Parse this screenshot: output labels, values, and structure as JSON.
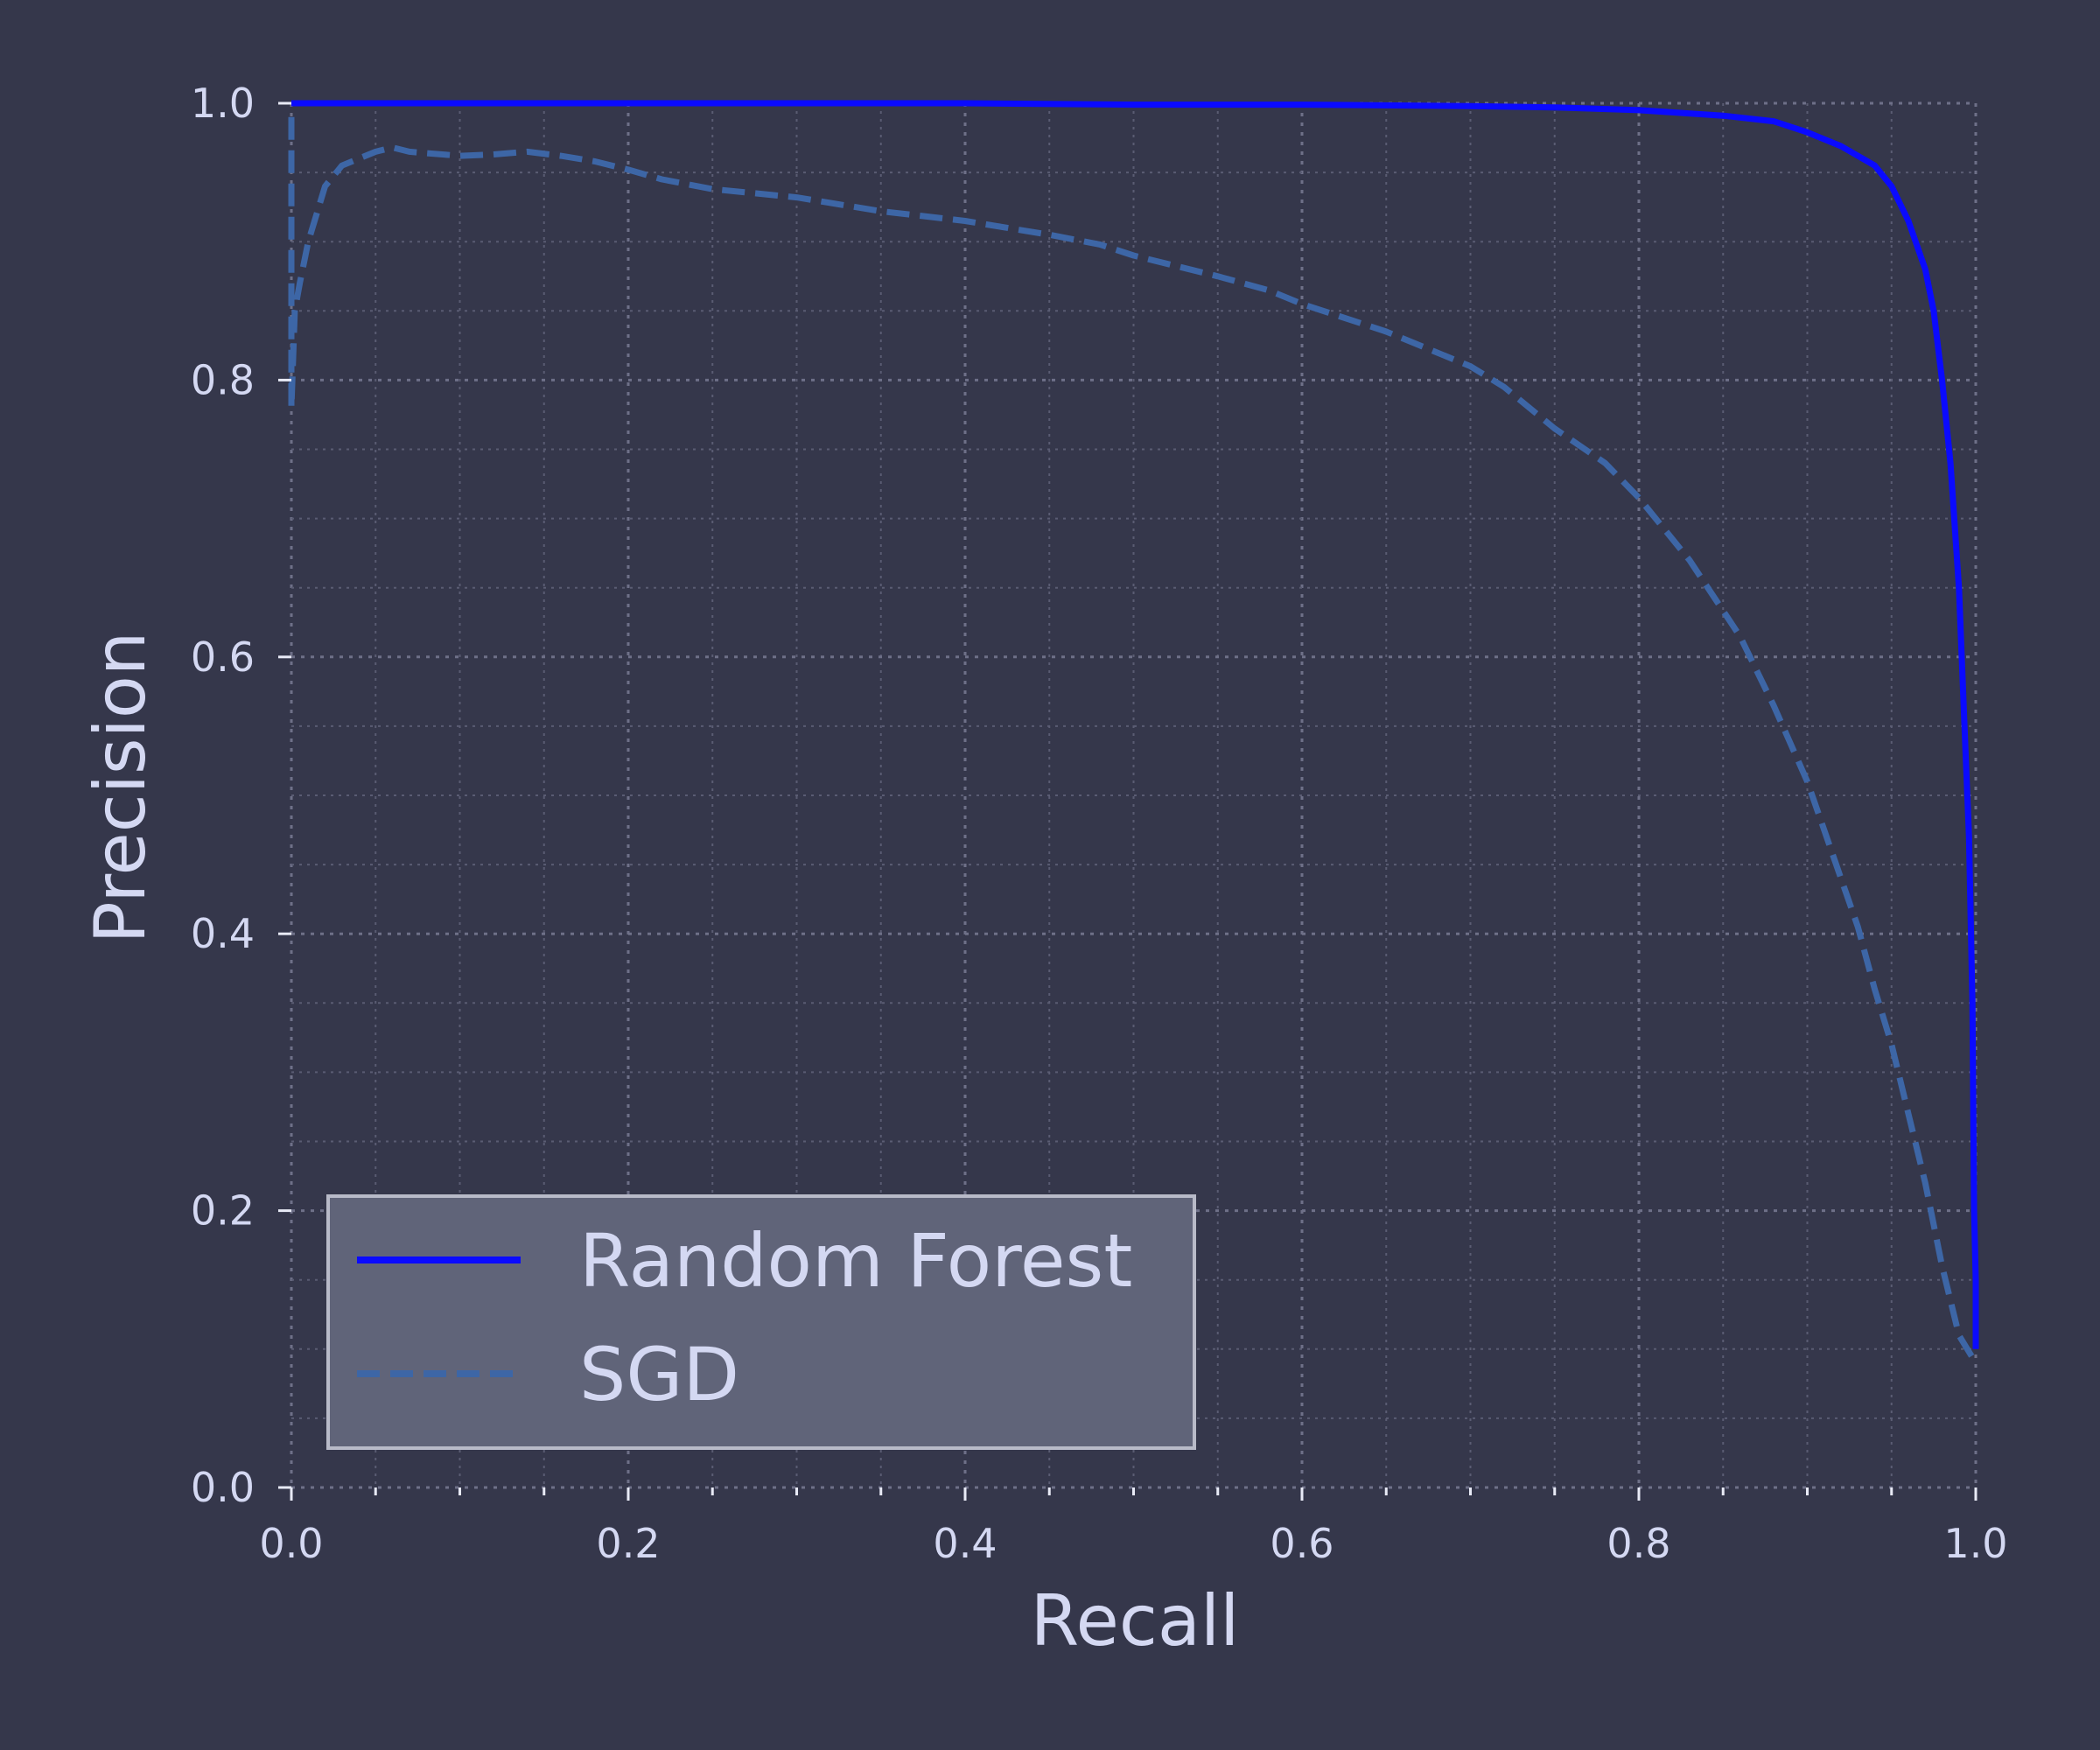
{
  "chart_data": {
    "type": "line",
    "xlabel": "Recall",
    "ylabel": "Precision",
    "xlim": [
      0.0,
      1.0
    ],
    "ylim": [
      0.0,
      1.0
    ],
    "x_ticks": [
      0.0,
      0.2,
      0.4,
      0.6,
      0.8,
      1.0
    ],
    "y_ticks": [
      0.0,
      0.2,
      0.4,
      0.6,
      0.8,
      1.0
    ],
    "x_tick_labels": [
      "0.0",
      "0.2",
      "0.4",
      "0.6",
      "0.8",
      "1.0"
    ],
    "y_tick_labels": [
      "0.0",
      "0.2",
      "0.4",
      "0.6",
      "0.8",
      "1.0"
    ],
    "grid": true,
    "minor_grid": true,
    "legend_position": "lower-left",
    "series": [
      {
        "name": "Random Forest",
        "color": "#0a0aff",
        "style": "solid",
        "x": [
          0.0,
          0.1,
          0.2,
          0.3,
          0.4,
          0.5,
          0.6,
          0.7,
          0.75,
          0.8,
          0.85,
          0.88,
          0.9,
          0.92,
          0.94,
          0.95,
          0.96,
          0.97,
          0.975,
          0.98,
          0.985,
          0.99,
          0.993,
          0.996,
          0.998,
          0.999,
          1.0,
          1.0
        ],
        "y": [
          1.0,
          1.0,
          1.0,
          1.0,
          1.0,
          0.999,
          0.999,
          0.998,
          0.997,
          0.995,
          0.991,
          0.987,
          0.979,
          0.969,
          0.955,
          0.94,
          0.915,
          0.88,
          0.85,
          0.8,
          0.74,
          0.65,
          0.56,
          0.47,
          0.35,
          0.2,
          0.15,
          0.1
        ]
      },
      {
        "name": "SGD",
        "color": "#3d66a6",
        "style": "dashed",
        "x": [
          0.0,
          0.0,
          0.002,
          0.005,
          0.01,
          0.02,
          0.03,
          0.04,
          0.05,
          0.06,
          0.07,
          0.08,
          0.1,
          0.12,
          0.14,
          0.16,
          0.18,
          0.2,
          0.22,
          0.25,
          0.3,
          0.35,
          0.4,
          0.45,
          0.48,
          0.5,
          0.55,
          0.58,
          0.6,
          0.65,
          0.7,
          0.72,
          0.75,
          0.78,
          0.8,
          0.83,
          0.86,
          0.88,
          0.9,
          0.91,
          0.92,
          0.93,
          0.94,
          0.95,
          0.96,
          0.97,
          0.98,
          0.99,
          1.0
        ],
        "y": [
          0.99,
          0.78,
          0.85,
          0.87,
          0.9,
          0.94,
          0.955,
          0.96,
          0.965,
          0.968,
          0.965,
          0.964,
          0.962,
          0.963,
          0.965,
          0.962,
          0.958,
          0.952,
          0.945,
          0.938,
          0.932,
          0.922,
          0.915,
          0.905,
          0.898,
          0.89,
          0.875,
          0.865,
          0.855,
          0.835,
          0.81,
          0.795,
          0.765,
          0.74,
          0.715,
          0.67,
          0.615,
          0.565,
          0.51,
          0.475,
          0.44,
          0.405,
          0.36,
          0.32,
          0.27,
          0.22,
          0.16,
          0.11,
          0.09
        ]
      }
    ]
  }
}
